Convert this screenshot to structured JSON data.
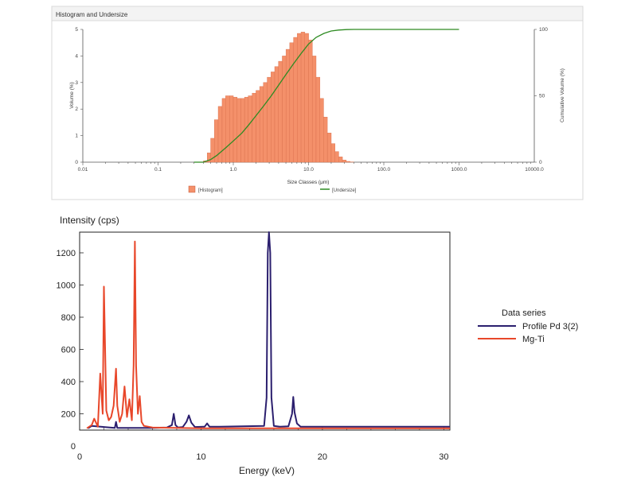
{
  "chart_data": [
    {
      "type": "bar",
      "title": "Histogram and Undersize",
      "xlabel": "Size Classes (μm)",
      "ylabel": "Volume (%)",
      "y2label": "Cumulative Volume (%)",
      "xscale": "log",
      "xlim": [
        0.01,
        10000
      ],
      "ylim": [
        0,
        5
      ],
      "y2lim": [
        0,
        100
      ],
      "xticks": [
        "0.01",
        "0.1",
        "1.0",
        "10.0",
        "100.0",
        "1000.0",
        "10000.0"
      ],
      "yticks": [
        "0",
        "1",
        "2",
        "3",
        "4",
        "5"
      ],
      "y2ticks": [
        "0",
        "50",
        "100"
      ],
      "legend": [
        "[Histogram]",
        "[Undersize]"
      ],
      "legend_position": "bottom",
      "series": [
        {
          "name": "[Histogram]",
          "color": "#f4906a",
          "x": [
            0.4,
            0.45,
            0.5,
            0.56,
            0.63,
            0.71,
            0.79,
            0.89,
            1.0,
            1.12,
            1.26,
            1.41,
            1.58,
            1.78,
            2.0,
            2.24,
            2.51,
            2.82,
            3.16,
            3.55,
            3.98,
            4.47,
            5.01,
            5.62,
            6.31,
            7.08,
            7.94,
            8.91,
            10.0,
            11.2,
            12.6,
            14.1,
            15.8,
            17.8,
            20.0,
            22.4,
            25.1,
            28.2,
            31.6,
            35.5
          ],
          "values": [
            0.05,
            0.35,
            0.9,
            1.6,
            2.1,
            2.4,
            2.5,
            2.5,
            2.45,
            2.4,
            2.4,
            2.45,
            2.5,
            2.6,
            2.7,
            2.85,
            3.0,
            3.2,
            3.4,
            3.6,
            3.8,
            4.0,
            4.25,
            4.5,
            4.7,
            4.85,
            4.9,
            4.85,
            4.6,
            4.0,
            3.2,
            2.4,
            1.7,
            1.1,
            0.7,
            0.4,
            0.2,
            0.08,
            0.03,
            0.01
          ]
        },
        {
          "name": "[Undersize]",
          "color": "#2e8b22",
          "axis": "right",
          "x": [
            0.3,
            0.4,
            0.5,
            0.6,
            0.8,
            1.0,
            1.3,
            1.6,
            2.0,
            2.5,
            3.2,
            4.0,
            5.0,
            6.3,
            8.0,
            10.0,
            12.6,
            16.0,
            20.0,
            25.0,
            32.0,
            40.0,
            60.0,
            100.0,
            300.0,
            1000.0
          ],
          "values": [
            0,
            0,
            2,
            5,
            11,
            16,
            22,
            28,
            35,
            42,
            50,
            58,
            66,
            74,
            82,
            89,
            94,
            97,
            98.8,
            99.5,
            99.9,
            100,
            100,
            100,
            100,
            100
          ]
        }
      ]
    },
    {
      "type": "line",
      "title": "",
      "xlabel": "Energy (keV)",
      "ylabel": "Intensity (cps)",
      "xlim": [
        0,
        30.5
      ],
      "ylim": [
        0,
        1330
      ],
      "xticks": [
        "0",
        "10",
        "20",
        "30"
      ],
      "yticks": [
        "0",
        "200",
        "400",
        "600",
        "800",
        "1000",
        "1200"
      ],
      "legend_title": "Data series",
      "legend_position": "right",
      "series": [
        {
          "name": "Profile Pd 3(2)",
          "color": "#2b1f6e",
          "x": [
            0.7,
            1.0,
            2.0,
            2.9,
            3.0,
            3.1,
            5.0,
            6.0,
            7.2,
            7.6,
            7.75,
            7.9,
            8.1,
            8.5,
            8.8,
            9.0,
            9.2,
            9.5,
            10.3,
            10.5,
            10.7,
            11.5,
            15.2,
            15.4,
            15.5,
            15.6,
            15.7,
            15.8,
            16.0,
            16.5,
            17.2,
            17.5,
            17.6,
            17.7,
            17.9,
            18.2,
            30.5
          ],
          "values": [
            110,
            125,
            118,
            112,
            150,
            112,
            112,
            112,
            115,
            130,
            200,
            130,
            115,
            118,
            150,
            190,
            145,
            118,
            120,
            140,
            120,
            120,
            125,
            300,
            1200,
            1330,
            1200,
            300,
            125,
            120,
            122,
            200,
            305,
            210,
            140,
            120,
            120
          ]
        },
        {
          "name": "Mg-Ti",
          "color": "#e8472a",
          "x": [
            0.6,
            1.0,
            1.2,
            1.5,
            1.7,
            1.9,
            2.0,
            2.2,
            2.4,
            2.6,
            2.8,
            3.0,
            3.1,
            3.3,
            3.5,
            3.7,
            3.9,
            4.1,
            4.3,
            4.45,
            4.55,
            4.65,
            4.8,
            4.95,
            5.1,
            5.3,
            6.0,
            10.0,
            15.0,
            20.0,
            30.5
          ],
          "values": [
            110,
            130,
            170,
            120,
            450,
            200,
            990,
            220,
            160,
            180,
            250,
            480,
            250,
            150,
            200,
            370,
            180,
            290,
            160,
            500,
            1270,
            500,
            200,
            310,
            150,
            125,
            115,
            110,
            110,
            110,
            110
          ]
        }
      ]
    }
  ]
}
